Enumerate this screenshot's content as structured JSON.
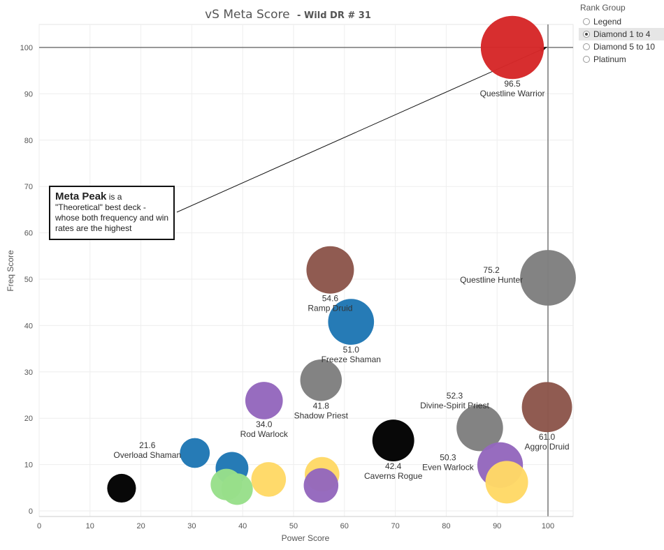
{
  "title": {
    "main": "vS Meta Score",
    "sub": "- Wild DR # 31"
  },
  "legend": {
    "title": "Rank Group",
    "options": [
      "Legend",
      "Diamond 1 to 4",
      "Diamond 5 to 10",
      "Platinum"
    ],
    "selected": "Diamond 1 to 4"
  },
  "annotation": {
    "bold": "Meta Peak",
    "text": " is a \"Theoretical\" best deck - whose both frequency and win rates are the highest"
  },
  "chart_data": {
    "type": "scatter",
    "xlabel": "Power Score",
    "ylabel": "Freq Score",
    "xlim": [
      0,
      105
    ],
    "ylim": [
      -1,
      105
    ],
    "xticks": [
      0,
      10,
      20,
      30,
      40,
      50,
      60,
      70,
      80,
      90,
      100
    ],
    "yticks": [
      0,
      10,
      20,
      30,
      40,
      50,
      60,
      70,
      80,
      90,
      100
    ],
    "grid": true,
    "reference_lines": {
      "x": 100,
      "y": 100
    },
    "points": [
      {
        "x": 93,
        "y": 100,
        "size": 96.5,
        "color": "#d62728",
        "score": "96.5",
        "name": "Questline Warrior",
        "label_pos": "below"
      },
      {
        "x": 100,
        "y": 50.3,
        "size": 75.2,
        "color": "#7f7f7f",
        "score": "75.2",
        "name": "Questline Hunter",
        "label_pos": "left"
      },
      {
        "x": 57.2,
        "y": 52,
        "size": 54.6,
        "color": "#8c564b",
        "score": "54.6",
        "name": "Ramp Druid",
        "label_pos": "below"
      },
      {
        "x": 99.8,
        "y": 22.4,
        "size": 61.0,
        "color": "#8c564b",
        "score": "61.0",
        "name": "Aggro Druid",
        "label_pos": "below"
      },
      {
        "x": 61.3,
        "y": 40.8,
        "size": 51.0,
        "color": "#1f77b4",
        "score": "51.0",
        "name": "Freeze Shaman",
        "label_pos": "below"
      },
      {
        "x": 86.6,
        "y": 17.9,
        "size": 52.3,
        "color": "#7f7f7f",
        "score": "52.3",
        "name": "Divine-Spirit Priest",
        "label_pos": "upleft"
      },
      {
        "x": 69.6,
        "y": 15.2,
        "size": 42.4,
        "color": "#000000",
        "score": "42.4",
        "name": "Caverns Rogue",
        "label_pos": "below"
      },
      {
        "x": 90.6,
        "y": 9.9,
        "size": 50.3,
        "color": "#9467bd",
        "score": "50.3",
        "name": "Even Warlock",
        "label_pos": "left"
      },
      {
        "x": 55.4,
        "y": 28.2,
        "size": 41.8,
        "color": "#7f7f7f",
        "score": "41.8",
        "name": "Shadow Priest",
        "label_pos": "below"
      },
      {
        "x": 44.2,
        "y": 23.8,
        "size": 34.0,
        "color": "#9467bd",
        "score": "34.0",
        "name": "Rod Warlock",
        "label_pos": "below"
      },
      {
        "x": 30.6,
        "y": 12.5,
        "size": 21.6,
        "color": "#1f77b4",
        "score": "21.6",
        "name": "Overload Shaman",
        "label_pos": "upleft"
      },
      {
        "x": 91.9,
        "y": 6.2,
        "size": 44,
        "color": "#ffd966"
      },
      {
        "x": 37.9,
        "y": 9.2,
        "size": 26,
        "color": "#1f77b4"
      },
      {
        "x": 16.2,
        "y": 4.9,
        "size": 20,
        "color": "#000000"
      },
      {
        "x": 36.8,
        "y": 5.7,
        "size": 24,
        "color": "#98df8a"
      },
      {
        "x": 38.9,
        "y": 4.7,
        "size": 24,
        "color": "#98df8a"
      },
      {
        "x": 45.1,
        "y": 6.8,
        "size": 29,
        "color": "#ffd966"
      },
      {
        "x": 55.6,
        "y": 7.9,
        "size": 29,
        "color": "#ffd966"
      },
      {
        "x": 55.4,
        "y": 5.5,
        "size": 29,
        "color": "#9467bd"
      }
    ]
  }
}
